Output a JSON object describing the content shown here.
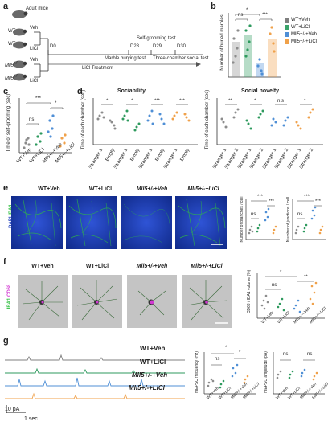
{
  "panel_letters": [
    "a",
    "b",
    "c",
    "d",
    "e",
    "f",
    "g"
  ],
  "a": {
    "groups": [
      {
        "label": "Adult mice"
      },
      {
        "label": "WT",
        "tx": "Veh"
      },
      {
        "label": "WT",
        "tx": "LiCl"
      },
      {
        "label": "Mll5",
        "sup": "+/-",
        "tx": "Veh"
      },
      {
        "label": "Mll5",
        "sup": "+/-",
        "tx": "LiCl"
      }
    ],
    "timeline": {
      "d0": "D0",
      "d28": "D28",
      "d29": "D29",
      "d30": "D30",
      "selfgroom": "Self-grooming test",
      "marble": "Marble burying test",
      "threechamber": "Three-chamber social test",
      "treatment": "LiCl Treatment"
    }
  },
  "legend": {
    "items": [
      {
        "label": "WT+Veh",
        "color": "#7f7f7f"
      },
      {
        "label": "WT+LiCl",
        "color": "#3aa36a"
      },
      {
        "label": "Mll5+/-+Veh",
        "color": "#4f8fd6"
      },
      {
        "label": "Mll5+/-+LiCl",
        "color": "#f0a14a"
      }
    ]
  },
  "colors": {
    "wt_veh": "#8c8c8c",
    "wt_licl": "#2e9a5e",
    "mll5_veh": "#4f8fd6",
    "mll5_licl": "#f0a14a",
    "dapi": "#1c3fbf",
    "iba1": "#2fbf3f",
    "cd68": "#d23ad2"
  },
  "b": {
    "ylabel": "Number of buried marbles",
    "sig": [
      "ns",
      "*",
      "***"
    ]
  },
  "c": {
    "ylabel": "Time of self-grooming (sec)",
    "sig": [
      "ns",
      "***",
      "*"
    ],
    "xticks": [
      "WT+Veh",
      "WT+LiCl",
      "Mll5+/-+Veh",
      "Mll5+/-+LiCl"
    ]
  },
  "d": {
    "sociability_title": "Sociability",
    "novelty_title": "Social novelty",
    "ylabel": "Time of each chamber (sec)",
    "sociability_xticks": [
      "Stranger 1",
      "Empty",
      "Stranger 1",
      "Empty",
      "Stranger 1",
      "Empty",
      "Stranger 1",
      "Empty"
    ],
    "novelty_xticks": [
      "Stranger 1",
      "Stranger 2",
      "Stranger 1",
      "Stranger 2",
      "Stranger 1",
      "Stranger 2",
      "Stranger 1",
      "Stranger 2"
    ],
    "sociability_sig": [
      "*",
      "*",
      "***",
      "***"
    ],
    "novelty_sig": [
      "**",
      "*",
      "n.s",
      "*"
    ]
  },
  "e": {
    "titles": [
      "WT+Veh",
      "WT+LiCl",
      "Mll5+/-+Veh",
      "Mll5+/-+LiCl"
    ],
    "side_label_dapi": "DAPI",
    "side_label_iba1": "IBA1",
    "y1": "Number of branches / cell",
    "y2": "Number of junctions / cell",
    "sig1": [
      "ns",
      "***",
      "***"
    ],
    "sig2": [
      "ns",
      "***",
      "***"
    ]
  },
  "f": {
    "titles": [
      "WT+Veh",
      "WT+LiCl",
      "Mll5+/-+Veh",
      "Mll5+/-+LiCl"
    ],
    "side_label_iba1": "IBA1",
    "side_label_cd68": "CD68",
    "ylabel": "CD68 / IBA1 volume (%)",
    "sig": [
      "ns",
      "*",
      "**"
    ],
    "xticks": [
      "WT+Veh",
      "WT+LiCl",
      "Mll5+/-+Veh",
      "Mll5+/-+LiCl"
    ]
  },
  "g": {
    "traces": [
      "WT+Veh",
      "WT+LiCl",
      "Mll5+/-+Veh",
      "Mll5+/-+LiCl"
    ],
    "scale_y": "10 pA",
    "scale_x": "1 sec",
    "y1": "mEPSC frequency (Hz)",
    "y2": "mEPSC amplitude (pA)",
    "sig1": [
      "ns",
      "*",
      "*"
    ],
    "sig2": [
      "ns",
      "ns"
    ],
    "xticks": [
      "WT+Veh",
      "WT+LiCl",
      "Mll5+/-+Veh",
      "Mll5+/-+LiCl"
    ]
  }
}
